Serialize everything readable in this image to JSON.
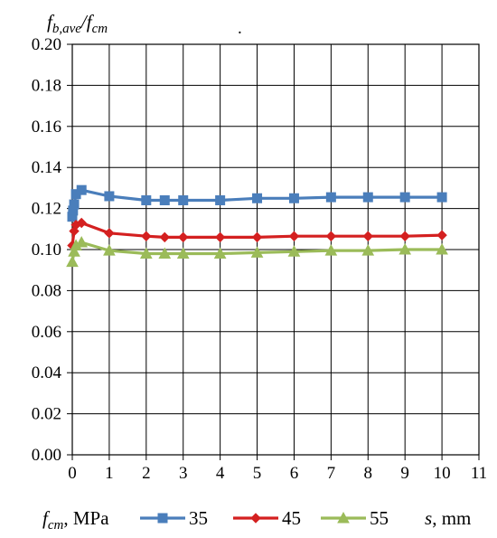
{
  "chart_data": {
    "type": "line",
    "ylabel": {
      "main": "f",
      "sub1": "b,ave",
      "sep": "/f",
      "sub2": "cm"
    },
    "xlabel": {
      "main": "s",
      "rest": ", mm"
    },
    "legend_title": {
      "main": "f",
      "sub": "cm",
      "rest": ", MPa"
    },
    "legend_position": "bottom",
    "xlim": [
      0,
      11
    ],
    "ylim": [
      0,
      0.2
    ],
    "x_ticks": [
      "0",
      "1",
      "2",
      "3",
      "4",
      "5",
      "6",
      "7",
      "8",
      "9",
      "10",
      "11"
    ],
    "y_ticks": [
      "0.00",
      "0.02",
      "0.04",
      "0.06",
      "0.08",
      "0.10",
      "0.12",
      "0.14",
      "0.16",
      "0.18",
      "0.20"
    ],
    "grid": {
      "vertical": true,
      "horizontal": true
    },
    "annotation": ".",
    "series": [
      {
        "name": "35",
        "color": "#4a7ebb",
        "marker": "square",
        "points": [
          [
            0,
            0.116
          ],
          [
            0.02,
            0.119
          ],
          [
            0.05,
            0.122
          ],
          [
            0.1,
            0.127
          ],
          [
            0.25,
            0.129
          ],
          [
            1,
            0.126
          ],
          [
            2,
            0.124
          ],
          [
            2.5,
            0.124
          ],
          [
            3,
            0.124
          ],
          [
            4,
            0.124
          ],
          [
            5,
            0.125
          ],
          [
            6,
            0.125
          ],
          [
            7,
            0.1255
          ],
          [
            8,
            0.1255
          ],
          [
            9,
            0.1255
          ],
          [
            10,
            0.1255
          ]
        ]
      },
      {
        "name": "45",
        "color": "#d42020",
        "marker": "diamond",
        "points": [
          [
            0,
            0.102
          ],
          [
            0.05,
            0.109
          ],
          [
            0.1,
            0.112
          ],
          [
            0.25,
            0.113
          ],
          [
            1,
            0.108
          ],
          [
            2,
            0.1065
          ],
          [
            2.5,
            0.106
          ],
          [
            3,
            0.106
          ],
          [
            4,
            0.106
          ],
          [
            5,
            0.106
          ],
          [
            6,
            0.1065
          ],
          [
            7,
            0.1065
          ],
          [
            8,
            0.1065
          ],
          [
            9,
            0.1065
          ],
          [
            10,
            0.107
          ]
        ]
      },
      {
        "name": "55",
        "color": "#9bbb59",
        "marker": "triangle",
        "points": [
          [
            0,
            0.094
          ],
          [
            0.05,
            0.099
          ],
          [
            0.1,
            0.102
          ],
          [
            0.25,
            0.1035
          ],
          [
            1,
            0.0995
          ],
          [
            2,
            0.098
          ],
          [
            2.5,
            0.098
          ],
          [
            3,
            0.098
          ],
          [
            4,
            0.098
          ],
          [
            5,
            0.0985
          ],
          [
            6,
            0.099
          ],
          [
            7,
            0.0995
          ],
          [
            8,
            0.0995
          ],
          [
            9,
            0.1
          ],
          [
            10,
            0.1
          ]
        ]
      }
    ]
  }
}
